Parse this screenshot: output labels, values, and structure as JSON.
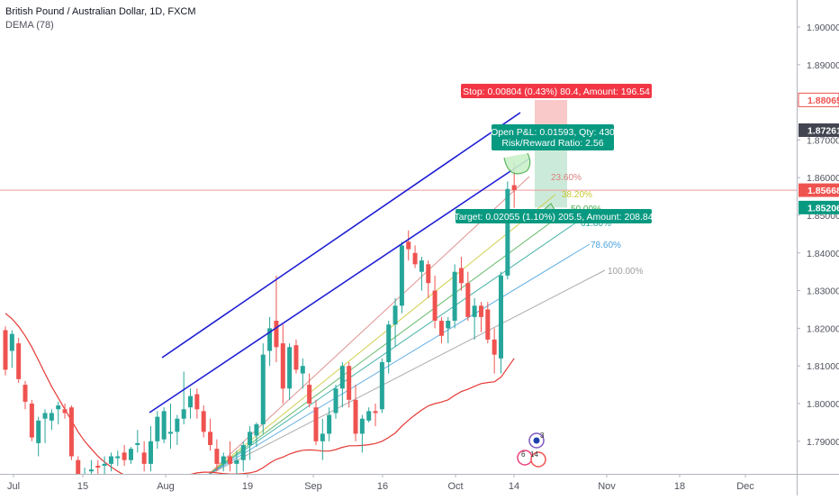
{
  "legend": {
    "title": "British Pound / Australian Dollar, 1D, FXCM",
    "indicator": "DEMA (78)"
  },
  "colors": {
    "up": "#26a69a",
    "down": "#ef5350",
    "dema": "#e53935",
    "channel": "#1e1ed4",
    "stop_zone": "#f8bcbc",
    "target_zone": "#bfe5cf",
    "stop_label_bg": "#f23645",
    "target_label_bg": "#089981",
    "price_line": "#ef9a9a",
    "current_badge": "#ef5350",
    "dark_badge": "#434651"
  },
  "price_axis": {
    "ticks": [
      "1.90000",
      "1.89000",
      "1.88000",
      "1.87000",
      "1.86000",
      "1.85000",
      "1.84000",
      "1.83000",
      "1.82000",
      "1.81000",
      "1.80000",
      "1.79000"
    ],
    "badges": [
      {
        "label": "1.88065",
        "value": 1.88065,
        "style": "red-outline"
      },
      {
        "label": "1.87261",
        "value": 1.87261,
        "style": "dark"
      },
      {
        "label": "1.85668",
        "value": 1.85668,
        "style": "red"
      },
      {
        "label": "1.85206",
        "value": 1.85206,
        "style": "green"
      }
    ]
  },
  "time_axis": {
    "ticks": [
      "Jul",
      "15",
      "Aug",
      "19",
      "Sep",
      "16",
      "Oct",
      "14",
      "Nov",
      "18",
      "Dec"
    ]
  },
  "position": {
    "stop_label": "Stop: 0.00804 (0.43%) 80.4, Amount: 196.54",
    "pnl_line1": "Open P&L: 0.01593, Qty: 430",
    "pnl_line2": "Risk/Reward Ratio: 2.56",
    "target_label": "Target: 0.02055 (1.10%) 205.5, Amount: 208.84",
    "entry": 1.87261,
    "stop": 1.88065,
    "target": 1.85206
  },
  "fib_levels": [
    {
      "label": "23.60%",
      "color": "#d98080"
    },
    {
      "label": "38.20%",
      "color": "#c8c830"
    },
    {
      "label": "50.00%",
      "color": "#4caf50"
    },
    {
      "label": "61.80%",
      "color": "#26a69a"
    },
    {
      "label": "78.60%",
      "color": "#4aa3df"
    },
    {
      "label": "100.00%",
      "color": "#9e9e9e"
    }
  ],
  "events": {
    "badge_a": "3",
    "badge_b": "6",
    "badge_c": "14"
  },
  "chart_data": {
    "type": "candlestick",
    "title": "British Pound / Australian Dollar, 1D, FXCM",
    "ylim": [
      1.784,
      1.9055
    ],
    "current_price": 1.85668,
    "candles": [
      {
        "o": 1.8195,
        "h": 1.8205,
        "l": 1.8075,
        "c": 1.809
      },
      {
        "o": 1.814,
        "h": 1.8195,
        "l": 1.8095,
        "c": 1.8185
      },
      {
        "o": 1.816,
        "h": 1.8175,
        "l": 1.8055,
        "c": 1.8065
      },
      {
        "o": 1.805,
        "h": 1.806,
        "l": 1.7985,
        "c": 1.8005
      },
      {
        "o": 1.8,
        "h": 1.801,
        "l": 1.79,
        "c": 1.791
      },
      {
        "o": 1.7895,
        "h": 1.7965,
        "l": 1.786,
        "c": 1.7955
      },
      {
        "o": 1.796,
        "h": 1.7985,
        "l": 1.7895,
        "c": 1.7975
      },
      {
        "o": 1.7955,
        "h": 1.7985,
        "l": 1.793,
        "c": 1.7975
      },
      {
        "o": 1.7985,
        "h": 1.8005,
        "l": 1.7945,
        "c": 1.7995
      },
      {
        "o": 1.7985,
        "h": 1.8,
        "l": 1.796,
        "c": 1.7975
      },
      {
        "o": 1.799,
        "h": 1.7995,
        "l": 1.785,
        "c": 1.786
      },
      {
        "o": 1.785,
        "h": 1.786,
        "l": 1.778,
        "c": 1.779
      },
      {
        "o": 1.7795,
        "h": 1.783,
        "l": 1.777,
        "c": 1.78
      },
      {
        "o": 1.782,
        "h": 1.785,
        "l": 1.781,
        "c": 1.7825
      },
      {
        "o": 1.7835,
        "h": 1.785,
        "l": 1.781,
        "c": 1.783
      },
      {
        "o": 1.7835,
        "h": 1.786,
        "l": 1.781,
        "c": 1.784
      },
      {
        "o": 1.784,
        "h": 1.787,
        "l": 1.782,
        "c": 1.786
      },
      {
        "o": 1.7855,
        "h": 1.7875,
        "l": 1.7835,
        "c": 1.786
      },
      {
        "o": 1.787,
        "h": 1.789,
        "l": 1.7835,
        "c": 1.785
      },
      {
        "o": 1.785,
        "h": 1.7885,
        "l": 1.784,
        "c": 1.788
      },
      {
        "o": 1.789,
        "h": 1.793,
        "l": 1.787,
        "c": 1.7895
      },
      {
        "o": 1.787,
        "h": 1.79,
        "l": 1.782,
        "c": 1.784
      },
      {
        "o": 1.784,
        "h": 1.794,
        "l": 1.782,
        "c": 1.79
      },
      {
        "o": 1.79,
        "h": 1.798,
        "l": 1.788,
        "c": 1.7965
      },
      {
        "o": 1.7905,
        "h": 1.799,
        "l": 1.7895,
        "c": 1.798
      },
      {
        "o": 1.792,
        "h": 1.8,
        "l": 1.788,
        "c": 1.7925
      },
      {
        "o": 1.7925,
        "h": 1.797,
        "l": 1.789,
        "c": 1.796
      },
      {
        "o": 1.796,
        "h": 1.8085,
        "l": 1.7945,
        "c": 1.7985
      },
      {
        "o": 1.799,
        "h": 1.804,
        "l": 1.796,
        "c": 1.802
      },
      {
        "o": 1.8025,
        "h": 1.804,
        "l": 1.796,
        "c": 1.7985
      },
      {
        "o": 1.798,
        "h": 1.7995,
        "l": 1.791,
        "c": 1.7925
      },
      {
        "o": 1.7925,
        "h": 1.796,
        "l": 1.7875,
        "c": 1.789
      },
      {
        "o": 1.788,
        "h": 1.7905,
        "l": 1.782,
        "c": 1.784
      },
      {
        "o": 1.784,
        "h": 1.787,
        "l": 1.782,
        "c": 1.786
      },
      {
        "o": 1.786,
        "h": 1.79,
        "l": 1.782,
        "c": 1.784
      },
      {
        "o": 1.784,
        "h": 1.7875,
        "l": 1.781,
        "c": 1.785
      },
      {
        "o": 1.785,
        "h": 1.79,
        "l": 1.782,
        "c": 1.789
      },
      {
        "o": 1.789,
        "h": 1.794,
        "l": 1.785,
        "c": 1.7925
      },
      {
        "o": 1.7915,
        "h": 1.795,
        "l": 1.7885,
        "c": 1.7945
      },
      {
        "o": 1.7945,
        "h": 1.816,
        "l": 1.792,
        "c": 1.813
      },
      {
        "o": 1.814,
        "h": 1.823,
        "l": 1.81,
        "c": 1.82
      },
      {
        "o": 1.822,
        "h": 1.834,
        "l": 1.811,
        "c": 1.815
      },
      {
        "o": 1.816,
        "h": 1.821,
        "l": 1.8,
        "c": 1.804
      },
      {
        "o": 1.804,
        "h": 1.816,
        "l": 1.801,
        "c": 1.815
      },
      {
        "o": 1.8155,
        "h": 1.817,
        "l": 1.808,
        "c": 1.809
      },
      {
        "o": 1.808,
        "h": 1.812,
        "l": 1.804,
        "c": 1.81
      },
      {
        "o": 1.805,
        "h": 1.808,
        "l": 1.799,
        "c": 1.8
      },
      {
        "o": 1.799,
        "h": 1.801,
        "l": 1.789,
        "c": 1.79
      },
      {
        "o": 1.79,
        "h": 1.796,
        "l": 1.785,
        "c": 1.792
      },
      {
        "o": 1.792,
        "h": 1.799,
        "l": 1.79,
        "c": 1.797
      },
      {
        "o": 1.7975,
        "h": 1.805,
        "l": 1.796,
        "c": 1.804
      },
      {
        "o": 1.804,
        "h": 1.811,
        "l": 1.799,
        "c": 1.81
      },
      {
        "o": 1.81,
        "h": 1.811,
        "l": 1.799,
        "c": 1.801
      },
      {
        "o": 1.801,
        "h": 1.805,
        "l": 1.79,
        "c": 1.792
      },
      {
        "o": 1.792,
        "h": 1.797,
        "l": 1.787,
        "c": 1.796
      },
      {
        "o": 1.7955,
        "h": 1.799,
        "l": 1.795,
        "c": 1.798
      },
      {
        "o": 1.798,
        "h": 1.8,
        "l": 1.794,
        "c": 1.7975
      },
      {
        "o": 1.7985,
        "h": 1.812,
        "l": 1.7975,
        "c": 1.811
      },
      {
        "o": 1.811,
        "h": 1.822,
        "l": 1.808,
        "c": 1.821
      },
      {
        "o": 1.821,
        "h": 1.828,
        "l": 1.815,
        "c": 1.826
      },
      {
        "o": 1.826,
        "h": 1.843,
        "l": 1.824,
        "c": 1.842
      },
      {
        "o": 1.843,
        "h": 1.846,
        "l": 1.838,
        "c": 1.841
      },
      {
        "o": 1.84,
        "h": 1.842,
        "l": 1.836,
        "c": 1.837
      },
      {
        "o": 1.835,
        "h": 1.839,
        "l": 1.83,
        "c": 1.838
      },
      {
        "o": 1.837,
        "h": 1.838,
        "l": 1.828,
        "c": 1.832
      },
      {
        "o": 1.83,
        "h": 1.834,
        "l": 1.82,
        "c": 1.822
      },
      {
        "o": 1.822,
        "h": 1.823,
        "l": 1.816,
        "c": 1.818
      },
      {
        "o": 1.82,
        "h": 1.823,
        "l": 1.816,
        "c": 1.822
      },
      {
        "o": 1.822,
        "h": 1.837,
        "l": 1.82,
        "c": 1.835
      },
      {
        "o": 1.836,
        "h": 1.839,
        "l": 1.83,
        "c": 1.832
      },
      {
        "o": 1.832,
        "h": 1.835,
        "l": 1.822,
        "c": 1.823
      },
      {
        "o": 1.823,
        "h": 1.828,
        "l": 1.817,
        "c": 1.826
      },
      {
        "o": 1.826,
        "h": 1.827,
        "l": 1.819,
        "c": 1.823
      },
      {
        "o": 1.825,
        "h": 1.827,
        "l": 1.816,
        "c": 1.817
      },
      {
        "o": 1.817,
        "h": 1.82,
        "l": 1.808,
        "c": 1.813
      },
      {
        "o": 1.812,
        "h": 1.835,
        "l": 1.808,
        "c": 1.834
      },
      {
        "o": 1.834,
        "h": 1.859,
        "l": 1.833,
        "c": 1.857
      },
      {
        "o": 1.858,
        "h": 1.864,
        "l": 1.852,
        "c": 1.8567
      }
    ],
    "dema": [
      1.824,
      1.8225,
      1.8205,
      1.818,
      1.815,
      1.8115,
      1.808,
      1.8045,
      1.8015,
      1.7985,
      1.7955,
      1.7925,
      1.79,
      1.788,
      1.786,
      1.7845,
      1.7832,
      1.782,
      1.781,
      1.7802,
      1.7796,
      1.7792,
      1.779,
      1.779,
      1.7792,
      1.7796,
      1.78,
      1.7806,
      1.7812,
      1.7816,
      1.7818,
      1.7818,
      1.7816,
      1.7814,
      1.7813,
      1.7813,
      1.7814,
      1.7816,
      1.782,
      1.783,
      1.7842,
      1.7852,
      1.7858,
      1.7866,
      1.7872,
      1.7876,
      1.7877,
      1.7876,
      1.7874,
      1.7874,
      1.7878,
      1.7884,
      1.7888,
      1.7888,
      1.7889,
      1.7891,
      1.7894,
      1.79,
      1.791,
      1.7922,
      1.794,
      1.7956,
      1.797,
      1.7983,
      1.7994,
      1.8,
      1.8004,
      1.801,
      1.8022,
      1.8032,
      1.8038,
      1.8046,
      1.8053,
      1.8056,
      1.8058,
      1.807,
      1.8095,
      1.812
    ]
  }
}
